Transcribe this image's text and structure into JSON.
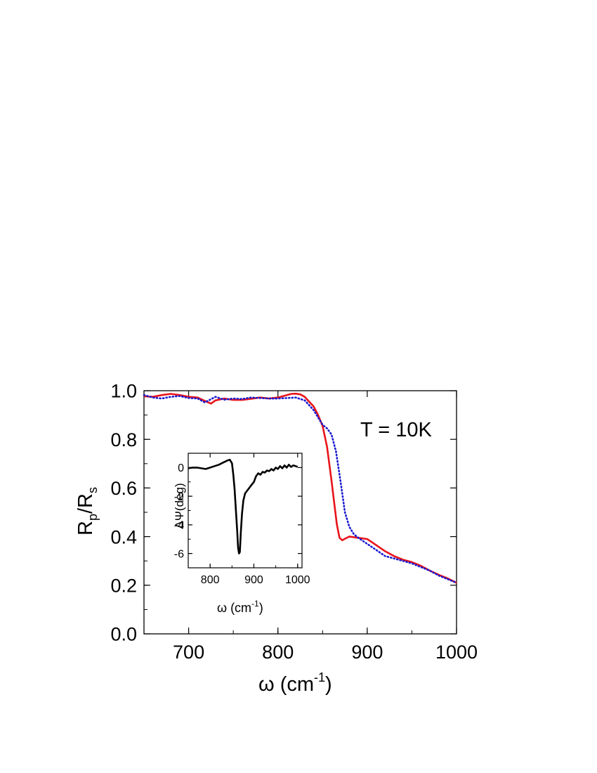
{
  "chart_data": [
    {
      "type": "line",
      "xlabel": {
        "symbol": "ω",
        "unit": " (cm",
        "exp": "-1",
        "close": ")"
      },
      "ylabel": {
        "main": "R",
        "sub1": "p",
        "slash": "/R",
        "sub2": "s"
      },
      "xlim": [
        650,
        1000
      ],
      "ylim": [
        0.0,
        1.0
      ],
      "x_ticks": [
        "700",
        "800",
        "900",
        "1000"
      ],
      "y_ticks": [
        "0.0",
        "0.2",
        "0.4",
        "0.6",
        "0.8",
        "1.0"
      ],
      "annotation": "T = 10K",
      "series": [
        {
          "style": "solid",
          "color": "#e8141a",
          "points": [
            [
              650,
              0.977
            ],
            [
              660,
              0.975
            ],
            [
              670,
              0.982
            ],
            [
              680,
              0.987
            ],
            [
              690,
              0.982
            ],
            [
              700,
              0.975
            ],
            [
              710,
              0.972
            ],
            [
              720,
              0.955
            ],
            [
              725,
              0.947
            ],
            [
              730,
              0.96
            ],
            [
              740,
              0.968
            ],
            [
              750,
              0.962
            ],
            [
              760,
              0.962
            ],
            [
              770,
              0.967
            ],
            [
              780,
              0.972
            ],
            [
              790,
              0.968
            ],
            [
              800,
              0.972
            ],
            [
              810,
              0.982
            ],
            [
              815,
              0.987
            ],
            [
              820,
              0.988
            ],
            [
              825,
              0.985
            ],
            [
              830,
              0.975
            ],
            [
              835,
              0.955
            ],
            [
              840,
              0.935
            ],
            [
              845,
              0.9
            ],
            [
              850,
              0.855
            ],
            [
              855,
              0.77
            ],
            [
              860,
              0.63
            ],
            [
              863,
              0.54
            ],
            [
              866,
              0.45
            ],
            [
              869,
              0.395
            ],
            [
              872,
              0.385
            ],
            [
              876,
              0.393
            ],
            [
              880,
              0.4
            ],
            [
              890,
              0.395
            ],
            [
              900,
              0.39
            ],
            [
              910,
              0.365
            ],
            [
              920,
              0.34
            ],
            [
              930,
              0.32
            ],
            [
              940,
              0.305
            ],
            [
              950,
              0.295
            ],
            [
              960,
              0.28
            ],
            [
              970,
              0.26
            ],
            [
              980,
              0.243
            ],
            [
              990,
              0.228
            ],
            [
              1000,
              0.21
            ]
          ]
        },
        {
          "style": "dotted",
          "color": "#1a1ad0",
          "points": [
            [
              650,
              0.982
            ],
            [
              660,
              0.972
            ],
            [
              670,
              0.968
            ],
            [
              680,
              0.975
            ],
            [
              690,
              0.978
            ],
            [
              700,
              0.97
            ],
            [
              710,
              0.968
            ],
            [
              718,
              0.952
            ],
            [
              725,
              0.965
            ],
            [
              730,
              0.975
            ],
            [
              740,
              0.963
            ],
            [
              750,
              0.968
            ],
            [
              760,
              0.966
            ],
            [
              770,
              0.972
            ],
            [
              780,
              0.97
            ],
            [
              790,
              0.968
            ],
            [
              800,
              0.968
            ],
            [
              810,
              0.97
            ],
            [
              820,
              0.972
            ],
            [
              830,
              0.96
            ],
            [
              840,
              0.92
            ],
            [
              845,
              0.89
            ],
            [
              850,
              0.86
            ],
            [
              855,
              0.845
            ],
            [
              860,
              0.82
            ],
            [
              865,
              0.75
            ],
            [
              870,
              0.63
            ],
            [
              875,
              0.5
            ],
            [
              880,
              0.44
            ],
            [
              885,
              0.41
            ],
            [
              890,
              0.395
            ],
            [
              900,
              0.37
            ],
            [
              910,
              0.345
            ],
            [
              920,
              0.32
            ],
            [
              930,
              0.31
            ],
            [
              940,
              0.3
            ],
            [
              950,
              0.29
            ],
            [
              960,
              0.275
            ],
            [
              970,
              0.26
            ],
            [
              980,
              0.24
            ],
            [
              990,
              0.225
            ],
            [
              1000,
              0.21
            ]
          ]
        }
      ]
    },
    {
      "type": "line",
      "inset": true,
      "xlabel": {
        "symbol": "ω",
        "unit": " (cm",
        "exp": "-1",
        "close": ")"
      },
      "ylabel": "ΔΨ(deg)",
      "xlim": [
        750,
        1010
      ],
      "ylim": [
        -7,
        1
      ],
      "x_ticks": [
        "800",
        "900",
        "1000"
      ],
      "y_ticks": [
        "0",
        "-2",
        "-4",
        "-6"
      ],
      "series": [
        {
          "style": "solid",
          "color": "#000000",
          "points": [
            [
              750,
              -0.05
            ],
            [
              760,
              0.0
            ],
            [
              770,
              0.0
            ],
            [
              780,
              -0.05
            ],
            [
              790,
              -0.1
            ],
            [
              800,
              0.0
            ],
            [
              810,
              0.1
            ],
            [
              820,
              0.2
            ],
            [
              830,
              0.35
            ],
            [
              840,
              0.5
            ],
            [
              845,
              0.55
            ],
            [
              850,
              0.3
            ],
            [
              853,
              -0.5
            ],
            [
              856,
              -1.5
            ],
            [
              859,
              -3.0
            ],
            [
              862,
              -4.5
            ],
            [
              864,
              -5.6
            ],
            [
              866,
              -6.0
            ],
            [
              868,
              -5.9
            ],
            [
              870,
              -4.6
            ],
            [
              873,
              -3.2
            ],
            [
              876,
              -2.3
            ],
            [
              880,
              -1.8
            ],
            [
              885,
              -1.6
            ],
            [
              890,
              -1.4
            ],
            [
              895,
              -1.2
            ],
            [
              900,
              -1.0
            ],
            [
              905,
              -0.6
            ],
            [
              910,
              -0.4
            ],
            [
              915,
              -0.5
            ],
            [
              920,
              -0.3
            ],
            [
              925,
              -0.35
            ],
            [
              930,
              -0.2
            ],
            [
              935,
              -0.25
            ],
            [
              940,
              -0.1
            ],
            [
              945,
              -0.2
            ],
            [
              950,
              0.0
            ],
            [
              955,
              -0.1
            ],
            [
              960,
              0.1
            ],
            [
              965,
              -0.05
            ],
            [
              970,
              0.15
            ],
            [
              975,
              0.0
            ],
            [
              980,
              0.2
            ],
            [
              985,
              0.05
            ],
            [
              990,
              0.15
            ],
            [
              995,
              0.1
            ],
            [
              1000,
              0.05
            ]
          ]
        }
      ]
    }
  ]
}
